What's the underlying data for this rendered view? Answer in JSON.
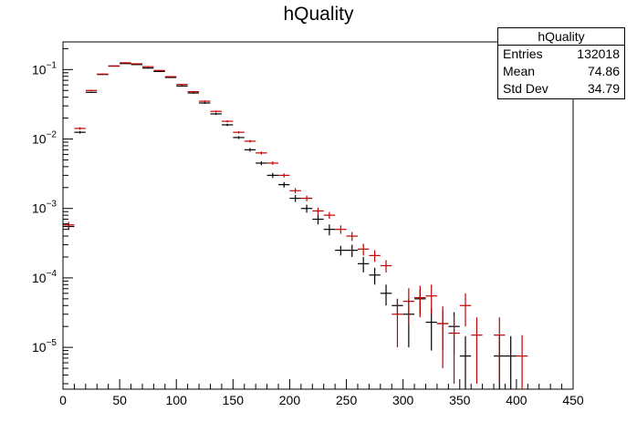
{
  "chart_data": {
    "type": "scatter",
    "title": "hQuality",
    "xlabel": "",
    "ylabel": "",
    "xlim": [
      0,
      450
    ],
    "ylim": [
      2.5e-06,
      0.25
    ],
    "yscale": "log",
    "x_ticks": [
      0,
      50,
      100,
      150,
      200,
      250,
      300,
      350,
      400,
      450
    ],
    "y_ticks": [
      {
        "value": 1e-05,
        "mantissa": "10",
        "exp": "−5"
      },
      {
        "value": 0.0001,
        "mantissa": "10",
        "exp": "−4"
      },
      {
        "value": 0.001,
        "mantissa": "10",
        "exp": "−3"
      },
      {
        "value": 0.01,
        "mantissa": "10",
        "exp": "−2"
      },
      {
        "value": 0.1,
        "mantissa": "10",
        "exp": "−1"
      }
    ],
    "bin_width": 10,
    "grid": false,
    "stats": {
      "title": "hQuality",
      "rows": [
        {
          "label": "Entries",
          "value": "132018"
        },
        {
          "label": "Mean",
          "value": "74.86"
        },
        {
          "label": "Std Dev",
          "value": "34.79"
        }
      ]
    },
    "series": [
      {
        "color": "#000000",
        "x": [
          5,
          15,
          25,
          35,
          45,
          55,
          65,
          75,
          85,
          95,
          105,
          115,
          125,
          135,
          145,
          155,
          165,
          175,
          185,
          195,
          205,
          215,
          225,
          235,
          245,
          255,
          265,
          275,
          285,
          295,
          305,
          315,
          325,
          335,
          345,
          355,
          365,
          375,
          385,
          395,
          405
        ],
        "y": [
          0.00055,
          0.0125,
          0.047,
          0.085,
          0.112,
          0.122,
          0.118,
          0.105,
          0.094,
          0.077,
          0.058,
          0.046,
          0.033,
          0.023,
          0.016,
          0.0105,
          0.007,
          0.0045,
          0.003,
          0.0022,
          0.0014,
          0.001,
          0.0007,
          0.0005,
          0.00025,
          0.00025,
          0.00016,
          0.00011,
          6e-05,
          4e-05,
          3e-05,
          5e-05,
          2.3e-05,
          2.2e-05,
          2e-05,
          7.5e-06,
          null,
          null,
          7.5e-06,
          7.5e-06,
          null
        ],
        "yerr": [
          6e-05,
          0.0005,
          0.001,
          0.0015,
          0.0018,
          0.0019,
          0.0019,
          0.0018,
          0.0017,
          0.0015,
          0.0013,
          0.0011,
          0.0009,
          0.0008,
          0.0006,
          0.0005,
          0.0004,
          0.0003,
          0.00025,
          0.0002,
          0.00016,
          0.00013,
          0.00011,
          9e-05,
          4e-05,
          5e-05,
          4e-05,
          3e-05,
          2e-05,
          1e-05,
          2e-05,
          2e-05,
          1.4e-05,
          1.3e-05,
          1.2e-05,
          7e-06,
          null,
          null,
          7e-06,
          7e-06,
          null
        ]
      },
      {
        "color": "#c00000",
        "x": [
          5,
          15,
          25,
          35,
          45,
          55,
          65,
          75,
          85,
          95,
          105,
          115,
          125,
          135,
          145,
          155,
          165,
          175,
          185,
          195,
          205,
          215,
          225,
          235,
          245,
          255,
          265,
          275,
          285,
          295,
          305,
          315,
          325,
          335,
          345,
          355,
          365,
          375,
          385,
          395,
          405
        ],
        "y": [
          0.00058,
          0.0142,
          0.05,
          0.086,
          0.113,
          0.125,
          0.121,
          0.11,
          0.097,
          0.079,
          0.061,
          0.048,
          0.035,
          0.025,
          0.018,
          0.0125,
          0.0093,
          0.0063,
          0.0045,
          0.003,
          0.0018,
          0.0014,
          0.00092,
          0.0008,
          0.0005,
          0.0004,
          0.00026,
          0.00021,
          0.00015,
          3e-05,
          4.6e-05,
          5.2e-05,
          5.5e-05,
          2.2e-05,
          1.6e-05,
          4e-05,
          1.5e-05,
          null,
          1.5e-05,
          null,
          7.5e-06
        ],
        "yerr": [
          6e-05,
          0.0006,
          0.001,
          0.0015,
          0.0018,
          0.0019,
          0.0019,
          0.0018,
          0.0017,
          0.0015,
          0.0013,
          0.0011,
          0.0009,
          0.0008,
          0.0006,
          0.0005,
          0.0004,
          0.0003,
          0.00025,
          0.0002,
          0.00016,
          0.00013,
          0.00011,
          9e-05,
          7e-05,
          6e-05,
          5e-05,
          4e-05,
          3e-05,
          2e-05,
          2.5e-05,
          2.5e-05,
          2.5e-05,
          1.7e-05,
          1.3e-05,
          2e-05,
          1.2e-05,
          null,
          1.2e-05,
          null,
          7.5e-06
        ]
      }
    ]
  }
}
